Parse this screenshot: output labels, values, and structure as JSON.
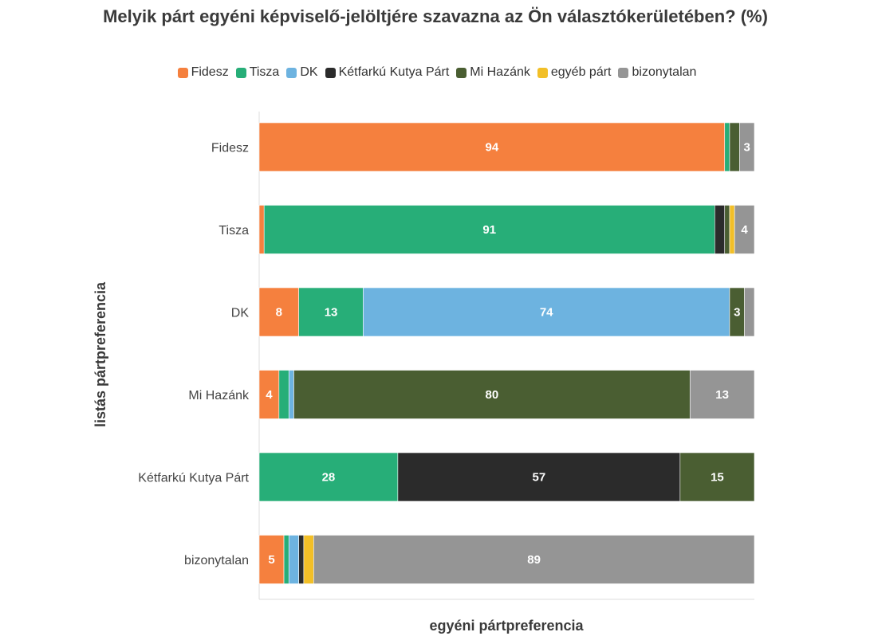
{
  "chart_data": {
    "type": "bar",
    "orientation": "horizontal",
    "stacked": true,
    "title": "Melyik párt egyéni képviselő-jelöltjére szavazna az Ön választókerületében? (%)",
    "xlabel": "egyéni pártpreferencia",
    "ylabel": "listás pártpreferencia",
    "xlim": [
      0,
      100
    ],
    "legend_position": "top",
    "categories": [
      "Fidesz",
      "Tisza",
      "DK",
      "Mi Hazánk",
      "Kétfarkú Kutya Párt",
      "bizonytalan"
    ],
    "series": [
      {
        "name": "Fidesz",
        "color": "#f5803e",
        "values": [
          94,
          1,
          8,
          4,
          0,
          5
        ]
      },
      {
        "name": "Tisza",
        "color": "#27ae78",
        "values": [
          1,
          91,
          13,
          2,
          28,
          1
        ]
      },
      {
        "name": "DK",
        "color": "#6db3e0",
        "values": [
          0,
          0,
          74,
          1,
          0,
          2
        ]
      },
      {
        "name": "Kétfarkú Kutya Párt",
        "color": "#2b2b2b",
        "values": [
          0,
          2,
          0,
          0,
          57,
          1
        ]
      },
      {
        "name": "Mi Hazánk",
        "color": "#4a5e32",
        "values": [
          2,
          1,
          3,
          80,
          15,
          0
        ]
      },
      {
        "name": "egyéb párt",
        "color": "#f2bf27",
        "values": [
          0,
          1,
          0,
          0,
          0,
          2
        ]
      },
      {
        "name": "bizonytalan",
        "color": "#959595",
        "values": [
          3,
          4,
          2,
          13,
          0,
          89
        ]
      }
    ],
    "data_labels": [
      {
        "category": "Fidesz",
        "series": "Fidesz",
        "text": "94"
      },
      {
        "category": "Fidesz",
        "series": "bizonytalan",
        "text": "3"
      },
      {
        "category": "Tisza",
        "series": "Tisza",
        "text": "91"
      },
      {
        "category": "Tisza",
        "series": "bizonytalan",
        "text": "4"
      },
      {
        "category": "DK",
        "series": "Fidesz",
        "text": "8"
      },
      {
        "category": "DK",
        "series": "Tisza",
        "text": "13"
      },
      {
        "category": "DK",
        "series": "DK",
        "text": "74"
      },
      {
        "category": "DK",
        "series": "Mi Hazánk",
        "text": "3"
      },
      {
        "category": "Mi Hazánk",
        "series": "Fidesz",
        "text": "4"
      },
      {
        "category": "Mi Hazánk",
        "series": "Mi Hazánk",
        "text": "80"
      },
      {
        "category": "Mi Hazánk",
        "series": "bizonytalan",
        "text": "13"
      },
      {
        "category": "Kétfarkú Kutya Párt",
        "series": "Tisza",
        "text": "28"
      },
      {
        "category": "Kétfarkú Kutya Párt",
        "series": "Kétfarkú Kutya Párt",
        "text": "57"
      },
      {
        "category": "Kétfarkú Kutya Párt",
        "series": "Mi Hazánk",
        "text": "15"
      },
      {
        "category": "bizonytalan",
        "series": "Fidesz",
        "text": "5"
      },
      {
        "category": "bizonytalan",
        "series": "bizonytalan",
        "text": "89"
      }
    ]
  }
}
